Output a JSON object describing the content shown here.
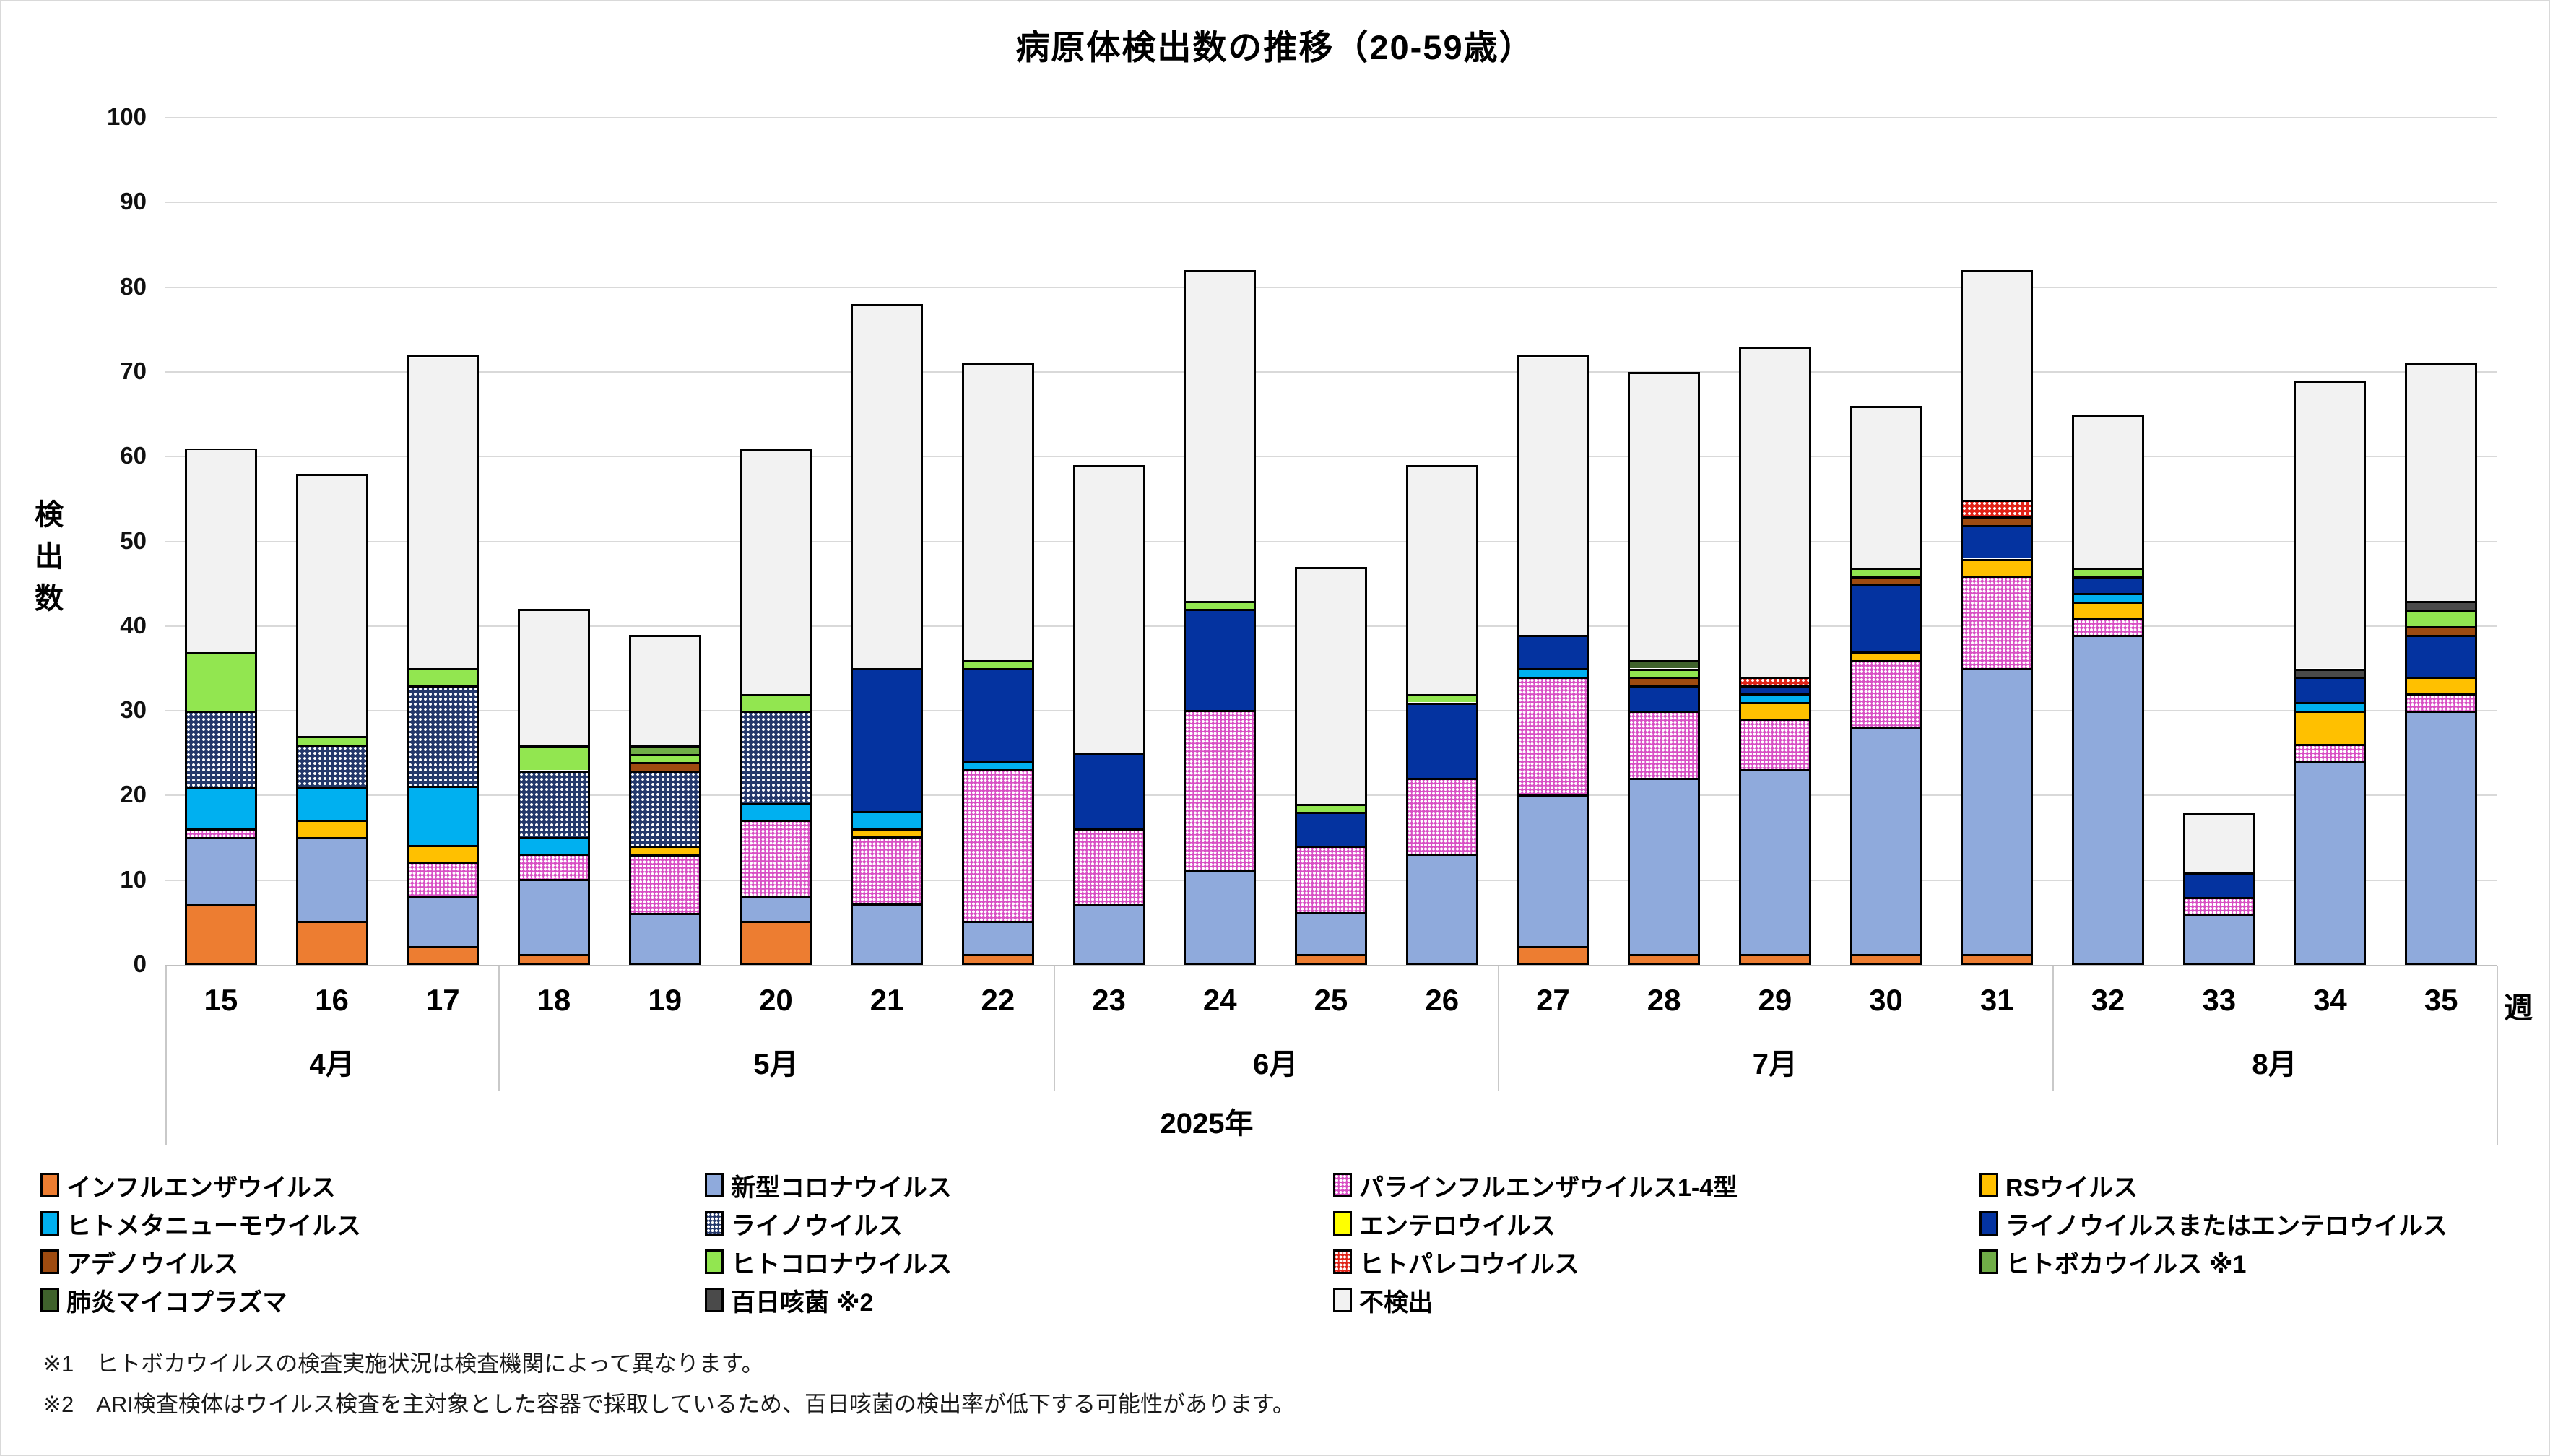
{
  "figure": {
    "title": "病原体検出数の推移（20-59歳）",
    "y_axis_title": "検出数",
    "x_axis_unit": "週",
    "year_label": "2025年",
    "footnotes": [
      "※1　ヒトボカウイルスの検査実施状況は検査機関によって異なります。",
      "※2　ARI検査検体はウイルス検査を主対象とした容器で採取しているため、百日咳菌の検出率が低下する可能性があります。"
    ]
  },
  "chart_data": {
    "type": "bar",
    "stacked": true,
    "title": "病原体検出数の推移（20-59歳）",
    "xlabel": "週",
    "ylabel": "検出数",
    "ylim": [
      0,
      100
    ],
    "y_tick_step": 10,
    "grid": true,
    "legend_position": "bottom",
    "categories": [
      15,
      16,
      17,
      18,
      19,
      20,
      21,
      22,
      23,
      24,
      25,
      26,
      27,
      28,
      29,
      30,
      31,
      32,
      33,
      34,
      35
    ],
    "month_groups": [
      {
        "label": "4月",
        "start_week": 15,
        "end_week": 17
      },
      {
        "label": "5月",
        "start_week": 18,
        "end_week": 22
      },
      {
        "label": "6月",
        "start_week": 23,
        "end_week": 26
      },
      {
        "label": "7月",
        "start_week": 27,
        "end_week": 31
      },
      {
        "label": "8月",
        "start_week": 32,
        "end_week": 35
      }
    ],
    "series": [
      {
        "key": "influenza",
        "name": "インフルエンザウイルス",
        "color": "#ED7D31",
        "pattern": "solid",
        "values": [
          7,
          5,
          2,
          1,
          0,
          5,
          0,
          1,
          0,
          0,
          1,
          0,
          2,
          1,
          1,
          1,
          1,
          0,
          0,
          0,
          0
        ]
      },
      {
        "key": "covid",
        "name": "新型コロナウイルス",
        "color": "#8FAADC",
        "pattern": "solid",
        "values": [
          8,
          10,
          6,
          9,
          6,
          3,
          7,
          4,
          7,
          11,
          5,
          13,
          18,
          21,
          22,
          27,
          34,
          39,
          6,
          24,
          30
        ]
      },
      {
        "key": "para",
        "name": "パラインフルエンザウイルス1-4型",
        "color": "#D84FC4",
        "pattern": "dots",
        "values": [
          1,
          0,
          4,
          3,
          7,
          9,
          8,
          18,
          9,
          19,
          8,
          9,
          14,
          8,
          6,
          8,
          11,
          2,
          2,
          2,
          2
        ]
      },
      {
        "key": "rs",
        "name": "RSウイルス",
        "color": "#FFC000",
        "pattern": "solid",
        "values": [
          0,
          2,
          2,
          0,
          1,
          0,
          1,
          0,
          0,
          0,
          0,
          0,
          0,
          0,
          2,
          1,
          2,
          2,
          0,
          4,
          2
        ]
      },
      {
        "key": "hmpv",
        "name": "ヒトメタニューモウイルス",
        "color": "#00B0F0",
        "pattern": "solid",
        "values": [
          5,
          4,
          7,
          2,
          0,
          2,
          2,
          1,
          0,
          0,
          0,
          0,
          1,
          0,
          1,
          0,
          0,
          1,
          0,
          1,
          0
        ]
      },
      {
        "key": "rhino",
        "name": "ライノウイルス",
        "color": "#24386B",
        "pattern": "dots",
        "values": [
          9,
          5,
          12,
          8,
          9,
          11,
          0,
          0,
          0,
          0,
          0,
          0,
          0,
          0,
          0,
          0,
          0,
          0,
          0,
          0,
          0
        ]
      },
      {
        "key": "entero",
        "name": "エンテロウイルス",
        "color": "#FFFF00",
        "pattern": "solid",
        "values": [
          0,
          0,
          0,
          0,
          0,
          0,
          0,
          0,
          0,
          0,
          0,
          0,
          0,
          0,
          0,
          0,
          0,
          0,
          0,
          0,
          0
        ]
      },
      {
        "key": "roe",
        "name": "ライノウイルスまたはエンテロウイルス",
        "color": "#0433A0",
        "pattern": "solid",
        "values": [
          0,
          0,
          0,
          0,
          0,
          0,
          17,
          11,
          9,
          12,
          4,
          9,
          4,
          3,
          1,
          8,
          4,
          2,
          3,
          3,
          5
        ]
      },
      {
        "key": "adeno",
        "name": "アデノウイルス",
        "color": "#9E4B10",
        "pattern": "solid",
        "values": [
          0,
          0,
          0,
          0,
          1,
          0,
          0,
          0,
          0,
          0,
          0,
          0,
          0,
          1,
          0,
          1,
          1,
          0,
          0,
          0,
          1
        ]
      },
      {
        "key": "hcov",
        "name": "ヒトコロナウイルス",
        "color": "#92E650",
        "pattern": "solid",
        "values": [
          7,
          1,
          2,
          3,
          1,
          2,
          0,
          1,
          0,
          1,
          1,
          1,
          0,
          1,
          0,
          1,
          0,
          1,
          0,
          0,
          2
        ]
      },
      {
        "key": "parecho",
        "name": "ヒトパレコウイルス",
        "color": "#E02318",
        "pattern": "dots",
        "values": [
          0,
          0,
          0,
          0,
          0,
          0,
          0,
          0,
          0,
          0,
          0,
          0,
          0,
          0,
          1,
          0,
          2,
          0,
          0,
          0,
          0
        ]
      },
      {
        "key": "boca",
        "name": "ヒトボカウイルス",
        "color": "#70AD47",
        "pattern": "solid",
        "values": [
          0,
          0,
          0,
          0,
          1,
          0,
          0,
          0,
          0,
          0,
          0,
          0,
          0,
          0,
          0,
          0,
          0,
          0,
          0,
          0,
          0
        ]
      },
      {
        "key": "mycoplasma",
        "name": "肺炎マイコプラズマ",
        "color": "#3F622C",
        "pattern": "solid",
        "values": [
          0,
          0,
          0,
          0,
          0,
          0,
          0,
          0,
          0,
          0,
          0,
          0,
          0,
          1,
          0,
          0,
          0,
          0,
          0,
          0,
          0
        ]
      },
      {
        "key": "pertussis",
        "name": "百日咳菌",
        "color": "#4A4A4A",
        "pattern": "solid",
        "values": [
          0,
          0,
          0,
          0,
          0,
          0,
          0,
          0,
          0,
          0,
          0,
          0,
          0,
          0,
          0,
          0,
          0,
          0,
          0,
          1,
          1
        ]
      },
      {
        "key": "not_detected",
        "name": "不検出",
        "color": "#F2F2F2",
        "pattern": "solid",
        "values": [
          24,
          31,
          37,
          16,
          13,
          29,
          43,
          35,
          34,
          39,
          28,
          27,
          33,
          34,
          39,
          19,
          27,
          18,
          7,
          34,
          28
        ]
      }
    ],
    "totals": [
      61,
      58,
      72,
      42,
      39,
      61,
      78,
      71,
      59,
      82,
      47,
      59,
      72,
      70,
      73,
      66,
      82,
      65,
      18,
      69,
      71
    ]
  },
  "legend": {
    "rows": [
      [
        {
          "series": "influenza",
          "label": "インフルエンザウイルス"
        },
        {
          "series": "covid",
          "label": "新型コロナウイルス"
        },
        {
          "series": "para",
          "label": "パラインフルエンザウイルス1-4型"
        },
        {
          "series": "rs",
          "label": "RSウイルス"
        }
      ],
      [
        {
          "series": "hmpv",
          "label": "ヒトメタニューモウイルス"
        },
        {
          "series": "rhino",
          "label": "ライノウイルス"
        },
        {
          "series": "entero",
          "label": "エンテロウイルス"
        },
        {
          "series": "roe",
          "label": "ライノウイルスまたはエンテロウイルス"
        }
      ],
      [
        {
          "series": "adeno",
          "label": "アデノウイルス"
        },
        {
          "series": "hcov",
          "label": "ヒトコロナウイルス"
        },
        {
          "series": "parecho",
          "label": "ヒトパレコウイルス"
        },
        {
          "series": "boca",
          "label": "ヒトボカウイルス ※1"
        }
      ],
      [
        {
          "series": "mycoplasma",
          "label": "肺炎マイコプラズマ"
        },
        {
          "series": "pertussis",
          "label": "百日咳菌 ※2"
        },
        {
          "series": "not_detected",
          "label": "不検出"
        }
      ]
    ]
  }
}
